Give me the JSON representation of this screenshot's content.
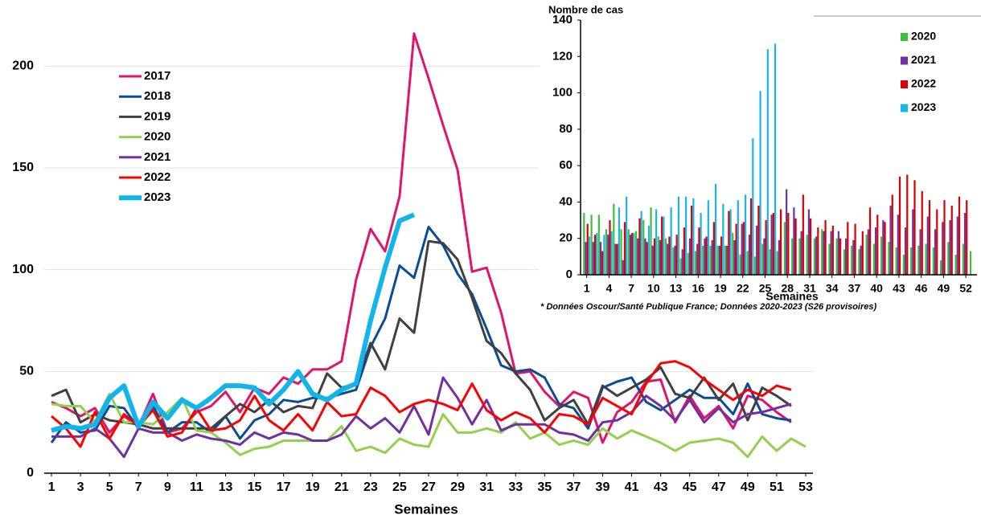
{
  "chart_data": [
    {
      "type": "line",
      "x_label": "Semaines",
      "x": [
        1,
        2,
        3,
        4,
        5,
        6,
        7,
        8,
        9,
        10,
        11,
        12,
        13,
        14,
        15,
        16,
        17,
        18,
        19,
        20,
        21,
        22,
        23,
        24,
        25,
        26,
        27,
        28,
        29,
        30,
        31,
        32,
        33,
        34,
        35,
        36,
        37,
        38,
        39,
        40,
        41,
        42,
        43,
        44,
        45,
        46,
        47,
        48,
        49,
        50,
        51,
        52,
        53
      ],
      "xlim": [
        0.5,
        53.5
      ],
      "xticks": [
        1,
        3,
        5,
        7,
        9,
        11,
        13,
        15,
        17,
        19,
        21,
        23,
        25,
        27,
        29,
        31,
        33,
        35,
        37,
        39,
        41,
        43,
        45,
        47,
        49,
        51,
        53
      ],
      "ylim": [
        0,
        225
      ],
      "yticks": [
        0,
        50,
        100,
        150,
        200
      ],
      "grid": true,
      "legend": "upper left",
      "series": [
        {
          "name": "2017",
          "color": "#e0156a",
          "values": [
            35,
            32,
            28,
            32,
            20,
            28,
            23,
            39,
            20,
            22,
            30,
            33,
            40,
            30,
            42,
            39,
            47,
            44,
            51,
            51,
            55,
            95,
            120,
            109,
            136,
            216,
            194,
            171,
            149,
            99,
            101,
            79,
            49,
            50,
            40,
            33,
            40,
            37,
            15,
            30,
            35,
            45,
            46,
            25,
            38,
            27,
            33,
            22,
            38,
            36,
            30,
            25,
            null
          ]
        },
        {
          "name": "2018",
          "color": "#0a4c96",
          "values": [
            15,
            25,
            20,
            21,
            33,
            32,
            22,
            33,
            20,
            25,
            25,
            20,
            28,
            17,
            26,
            29,
            36,
            35,
            37,
            37,
            39,
            41,
            62,
            76,
            102,
            96,
            121,
            112,
            98,
            88,
            71,
            53,
            50,
            51,
            47,
            34,
            32,
            22,
            42,
            45,
            47,
            35,
            31,
            36,
            41,
            37,
            37,
            29,
            44,
            29,
            27,
            26,
            null
          ]
        },
        {
          "name": "2019",
          "color": "#404040",
          "values": [
            38,
            41,
            25,
            29,
            26,
            25,
            24,
            22,
            22,
            22,
            22,
            22,
            28,
            34,
            30,
            36,
            30,
            33,
            32,
            49,
            42,
            44,
            64,
            51,
            76,
            69,
            114,
            113,
            105,
            86,
            65,
            59,
            49,
            41,
            26,
            32,
            36,
            24,
            43,
            38,
            42,
            46,
            52,
            39,
            37,
            47,
            36,
            44,
            26,
            42,
            38,
            33,
            null
          ]
        },
        {
          "name": "2020",
          "color": "#92d050",
          "values": [
            34,
            33,
            33,
            25,
            39,
            25,
            25,
            24,
            30,
            37,
            21,
            20,
            15,
            9,
            12,
            13,
            16,
            16,
            16,
            16,
            23,
            11,
            13,
            10,
            17,
            14,
            13,
            29,
            20,
            20,
            22,
            20,
            25,
            17,
            20,
            14,
            16,
            14,
            22,
            17,
            21,
            18,
            15,
            11,
            15,
            16,
            17,
            15,
            8,
            18,
            11,
            17,
            13
          ]
        },
        {
          "name": "2021",
          "color": "#7030a0",
          "values": [
            18,
            18,
            18,
            22,
            17,
            8,
            22,
            20,
            20,
            16,
            19,
            17,
            16,
            14,
            20,
            17,
            20,
            19,
            16,
            16,
            19,
            28,
            22,
            27,
            20,
            33,
            19,
            47,
            37,
            24,
            36,
            21,
            24,
            24,
            24,
            20,
            19,
            16,
            25,
            26,
            30,
            38,
            33,
            26,
            36,
            25,
            32,
            25,
            29,
            30,
            32,
            34,
            null
          ]
        },
        {
          "name": "2022",
          "color": "#ff0000",
          "values": [
            28,
            22,
            13,
            30,
            17,
            29,
            23,
            31,
            18,
            20,
            32,
            21,
            22,
            26,
            38,
            26,
            21,
            29,
            21,
            35,
            28,
            29,
            42,
            38,
            30,
            34,
            36,
            34,
            31,
            44,
            31,
            26,
            30,
            27,
            20,
            29,
            28,
            24,
            37,
            33,
            29,
            44,
            54,
            55,
            52,
            46,
            41,
            36,
            41,
            38,
            43,
            41,
            null
          ]
        },
        {
          "name": "2023",
          "color": "#12b5ea",
          "values": [
            21,
            23,
            22,
            24,
            37,
            43,
            23,
            35,
            27,
            36,
            32,
            37,
            43,
            43,
            42,
            34,
            41,
            50,
            39,
            36,
            41,
            44,
            75,
            101,
            124,
            127,
            null,
            null,
            null,
            null,
            null,
            null,
            null,
            null,
            null,
            null,
            null,
            null,
            null,
            null,
            null,
            null,
            null,
            null,
            null,
            null,
            null,
            null,
            null,
            null,
            null,
            null,
            null
          ]
        }
      ]
    },
    {
      "type": "bar",
      "y_label": "Nombre de cas",
      "x_label": "Semaines",
      "note": "* Données Oscour/Santé Publique France; Données 2020-2023 (S26 provisoires)",
      "x": [
        1,
        2,
        3,
        4,
        5,
        6,
        7,
        8,
        9,
        10,
        11,
        12,
        13,
        14,
        15,
        16,
        17,
        18,
        19,
        20,
        21,
        22,
        23,
        24,
        25,
        26,
        27,
        28,
        29,
        30,
        31,
        32,
        33,
        34,
        35,
        36,
        37,
        38,
        39,
        40,
        41,
        42,
        43,
        44,
        45,
        46,
        47,
        48,
        49,
        50,
        51,
        52,
        53
      ],
      "xlim": [
        0.5,
        53.5
      ],
      "xticks": [
        1,
        4,
        7,
        10,
        13,
        16,
        19,
        22,
        25,
        28,
        31,
        34,
        37,
        40,
        43,
        46,
        49,
        52
      ],
      "ylim": [
        0,
        140
      ],
      "yticks": [
        0,
        20,
        40,
        60,
        80,
        100,
        120,
        140
      ],
      "legend": "upper right",
      "series": [
        {
          "name": "2020",
          "color": "#3cbf3c",
          "values": [
            34,
            33,
            33,
            25,
            39,
            25,
            25,
            24,
            30,
            37,
            21,
            20,
            15,
            9,
            12,
            13,
            16,
            16,
            16,
            16,
            23,
            11,
            13,
            10,
            17,
            14,
            13,
            29,
            20,
            20,
            22,
            20,
            25,
            17,
            20,
            14,
            16,
            14,
            22,
            17,
            21,
            18,
            15,
            11,
            15,
            16,
            17,
            15,
            8,
            18,
            11,
            17,
            13
          ]
        },
        {
          "name": "2021",
          "color": "#7030a0",
          "values": [
            18,
            18,
            18,
            22,
            17,
            8,
            22,
            20,
            20,
            16,
            19,
            17,
            16,
            14,
            20,
            17,
            20,
            19,
            16,
            16,
            19,
            28,
            22,
            27,
            20,
            33,
            19,
            47,
            37,
            24,
            36,
            21,
            24,
            24,
            24,
            20,
            19,
            16,
            25,
            26,
            30,
            38,
            33,
            26,
            36,
            25,
            32,
            25,
            29,
            30,
            32,
            34,
            null
          ]
        },
        {
          "name": "2022",
          "color": "#d80000",
          "values": [
            28,
            22,
            13,
            30,
            17,
            29,
            23,
            31,
            18,
            20,
            32,
            21,
            22,
            26,
            38,
            26,
            21,
            29,
            21,
            35,
            28,
            29,
            42,
            38,
            30,
            34,
            36,
            34,
            31,
            44,
            31,
            26,
            30,
            27,
            20,
            29,
            28,
            24,
            37,
            33,
            29,
            44,
            54,
            55,
            52,
            46,
            41,
            36,
            41,
            38,
            43,
            41,
            null
          ]
        },
        {
          "name": "2023",
          "color": "#19b4ea",
          "values": [
            21,
            23,
            22,
            24,
            37,
            43,
            23,
            35,
            27,
            36,
            32,
            37,
            43,
            43,
            42,
            34,
            41,
            50,
            39,
            36,
            41,
            44,
            75,
            101,
            124,
            127,
            null,
            null,
            null,
            null,
            null,
            null,
            null,
            null,
            null,
            null,
            null,
            null,
            null,
            null,
            null,
            null,
            null,
            null,
            null,
            null,
            null,
            null,
            null,
            null,
            null,
            null,
            null
          ]
        }
      ]
    }
  ]
}
